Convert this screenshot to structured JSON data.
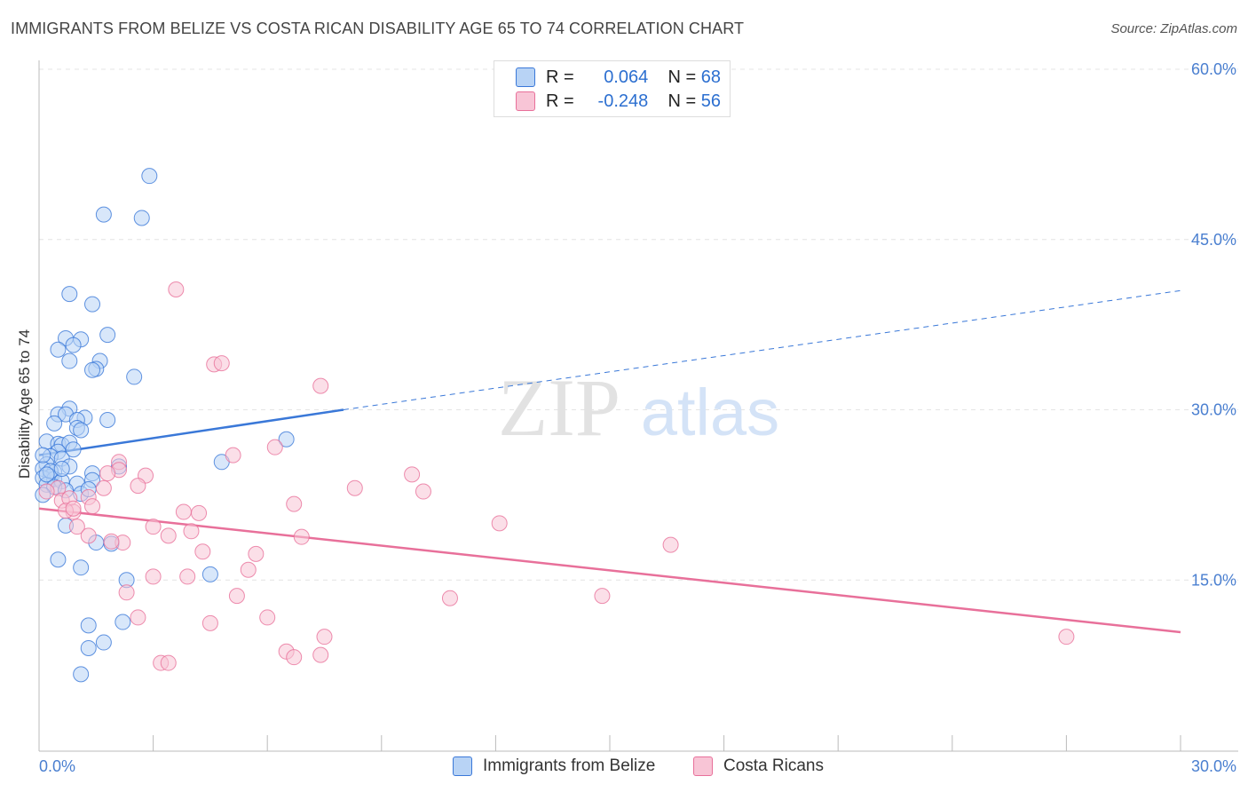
{
  "title": "IMMIGRANTS FROM BELIZE VS COSTA RICAN DISABILITY AGE 65 TO 74 CORRELATION CHART",
  "source": "Source: ZipAtlas.com",
  "watermark": {
    "zip": "ZIP",
    "atlas": "atlas"
  },
  "colors": {
    "blue": "#3a78d8",
    "blue_fill": "#b8d3f5",
    "pink": "#e8709a",
    "pink_fill": "#f8c5d6",
    "tick": "#4a7fd0"
  },
  "legend": {
    "row1": {
      "r_label": "R =",
      "r_value": "0.064",
      "n_label": "N =",
      "n_value": "68"
    },
    "row2": {
      "r_label": "R =",
      "r_value": "-0.248",
      "n_label": "N =",
      "n_value": "56"
    }
  },
  "bottom_legend": {
    "series1": "Immigrants from Belize",
    "series2": "Costa Ricans"
  },
  "chart_data": {
    "type": "scatter",
    "title": "IMMIGRANTS FROM BELIZE VS COSTA RICAN DISABILITY AGE 65 TO 74 CORRELATION CHART",
    "xlabel": "",
    "ylabel": "Disability Age 65 to 74",
    "xlim": [
      0,
      30
    ],
    "ylim": [
      0,
      60
    ],
    "x_tick_labels": [
      "0.0%",
      "30.0%"
    ],
    "y_ticks": [
      15,
      30,
      45,
      60
    ],
    "y_tick_labels": [
      "15.0%",
      "30.0%",
      "45.0%",
      "60.0%"
    ],
    "series": [
      {
        "name": "Immigrants from Belize",
        "R": 0.064,
        "N": 68,
        "trend": {
          "x0": 0.0,
          "y0": 26.0,
          "x1": 8.0,
          "y1": 30.0,
          "dash_x1": 30.0,
          "dash_y1": 40.5
        },
        "points": [
          [
            2.9,
            50.6
          ],
          [
            1.7,
            47.2
          ],
          [
            2.7,
            46.9
          ],
          [
            0.8,
            40.2
          ],
          [
            1.4,
            39.3
          ],
          [
            1.8,
            36.6
          ],
          [
            0.7,
            36.3
          ],
          [
            1.1,
            36.2
          ],
          [
            0.5,
            35.3
          ],
          [
            0.9,
            35.7
          ],
          [
            1.6,
            34.3
          ],
          [
            0.8,
            34.3
          ],
          [
            1.5,
            33.6
          ],
          [
            2.5,
            32.9
          ],
          [
            1.4,
            33.5
          ],
          [
            0.8,
            30.1
          ],
          [
            0.5,
            29.6
          ],
          [
            0.7,
            29.6
          ],
          [
            1.2,
            29.3
          ],
          [
            1.8,
            29.1
          ],
          [
            1.0,
            29.1
          ],
          [
            0.4,
            28.8
          ],
          [
            1.0,
            28.4
          ],
          [
            1.1,
            28.2
          ],
          [
            0.2,
            27.2
          ],
          [
            0.5,
            27.0
          ],
          [
            0.6,
            26.9
          ],
          [
            0.8,
            27.1
          ],
          [
            0.5,
            26.3
          ],
          [
            0.3,
            25.9
          ],
          [
            0.6,
            25.7
          ],
          [
            0.2,
            25.2
          ],
          [
            0.8,
            25.0
          ],
          [
            2.1,
            25.0
          ],
          [
            0.1,
            24.8
          ],
          [
            0.4,
            24.5
          ],
          [
            0.3,
            24.1
          ],
          [
            0.1,
            24.0
          ],
          [
            0.4,
            23.9
          ],
          [
            0.6,
            23.7
          ],
          [
            0.2,
            23.4
          ],
          [
            0.4,
            23.2
          ],
          [
            1.4,
            24.4
          ],
          [
            1.0,
            23.5
          ],
          [
            1.4,
            23.8
          ],
          [
            0.7,
            22.9
          ],
          [
            0.1,
            22.5
          ],
          [
            1.1,
            22.6
          ],
          [
            4.8,
            25.4
          ],
          [
            6.5,
            27.4
          ],
          [
            0.7,
            19.8
          ],
          [
            1.5,
            18.3
          ],
          [
            1.9,
            18.2
          ],
          [
            0.5,
            16.8
          ],
          [
            1.1,
            16.1
          ],
          [
            2.3,
            15.0
          ],
          [
            4.5,
            15.5
          ],
          [
            1.3,
            11.0
          ],
          [
            2.2,
            11.3
          ],
          [
            1.7,
            9.5
          ],
          [
            1.3,
            9.0
          ],
          [
            1.1,
            6.7
          ],
          [
            0.3,
            24.6
          ],
          [
            0.9,
            26.5
          ],
          [
            0.1,
            26.0
          ],
          [
            0.2,
            24.3
          ],
          [
            1.3,
            23.0
          ],
          [
            0.6,
            24.8
          ]
        ]
      },
      {
        "name": "Costa Ricans",
        "R": -0.248,
        "N": 56,
        "trend": {
          "x0": 0.0,
          "y0": 21.3,
          "x1": 30.0,
          "y1": 10.4
        },
        "points": [
          [
            3.6,
            40.6
          ],
          [
            4.6,
            34.0
          ],
          [
            4.8,
            34.1
          ],
          [
            7.4,
            32.1
          ],
          [
            6.2,
            26.7
          ],
          [
            5.1,
            26.0
          ],
          [
            2.1,
            25.4
          ],
          [
            2.1,
            24.7
          ],
          [
            1.8,
            24.4
          ],
          [
            2.8,
            24.2
          ],
          [
            9.8,
            24.3
          ],
          [
            0.5,
            23.1
          ],
          [
            1.7,
            23.1
          ],
          [
            2.6,
            23.3
          ],
          [
            8.3,
            23.1
          ],
          [
            10.1,
            22.8
          ],
          [
            1.3,
            22.3
          ],
          [
            0.6,
            22.0
          ],
          [
            0.8,
            22.2
          ],
          [
            0.2,
            22.8
          ],
          [
            6.7,
            21.7
          ],
          [
            1.4,
            21.5
          ],
          [
            0.9,
            21.0
          ],
          [
            0.7,
            21.1
          ],
          [
            3.8,
            21.0
          ],
          [
            4.2,
            20.9
          ],
          [
            3.0,
            19.7
          ],
          [
            1.0,
            19.7
          ],
          [
            12.1,
            20.0
          ],
          [
            1.3,
            18.9
          ],
          [
            3.4,
            18.9
          ],
          [
            4.0,
            19.3
          ],
          [
            6.9,
            18.8
          ],
          [
            2.2,
            18.3
          ],
          [
            1.9,
            18.4
          ],
          [
            16.6,
            18.1
          ],
          [
            4.3,
            17.5
          ],
          [
            5.7,
            17.3
          ],
          [
            5.5,
            15.9
          ],
          [
            3.0,
            15.3
          ],
          [
            3.9,
            15.3
          ],
          [
            2.3,
            13.9
          ],
          [
            5.2,
            13.6
          ],
          [
            10.8,
            13.4
          ],
          [
            14.8,
            13.6
          ],
          [
            2.6,
            11.7
          ],
          [
            6.0,
            11.7
          ],
          [
            4.5,
            11.2
          ],
          [
            6.5,
            8.7
          ],
          [
            7.5,
            10.0
          ],
          [
            6.7,
            8.2
          ],
          [
            7.4,
            8.4
          ],
          [
            3.2,
            7.7
          ],
          [
            3.4,
            7.7
          ],
          [
            27.0,
            10.0
          ],
          [
            0.9,
            21.3
          ]
        ]
      }
    ]
  }
}
